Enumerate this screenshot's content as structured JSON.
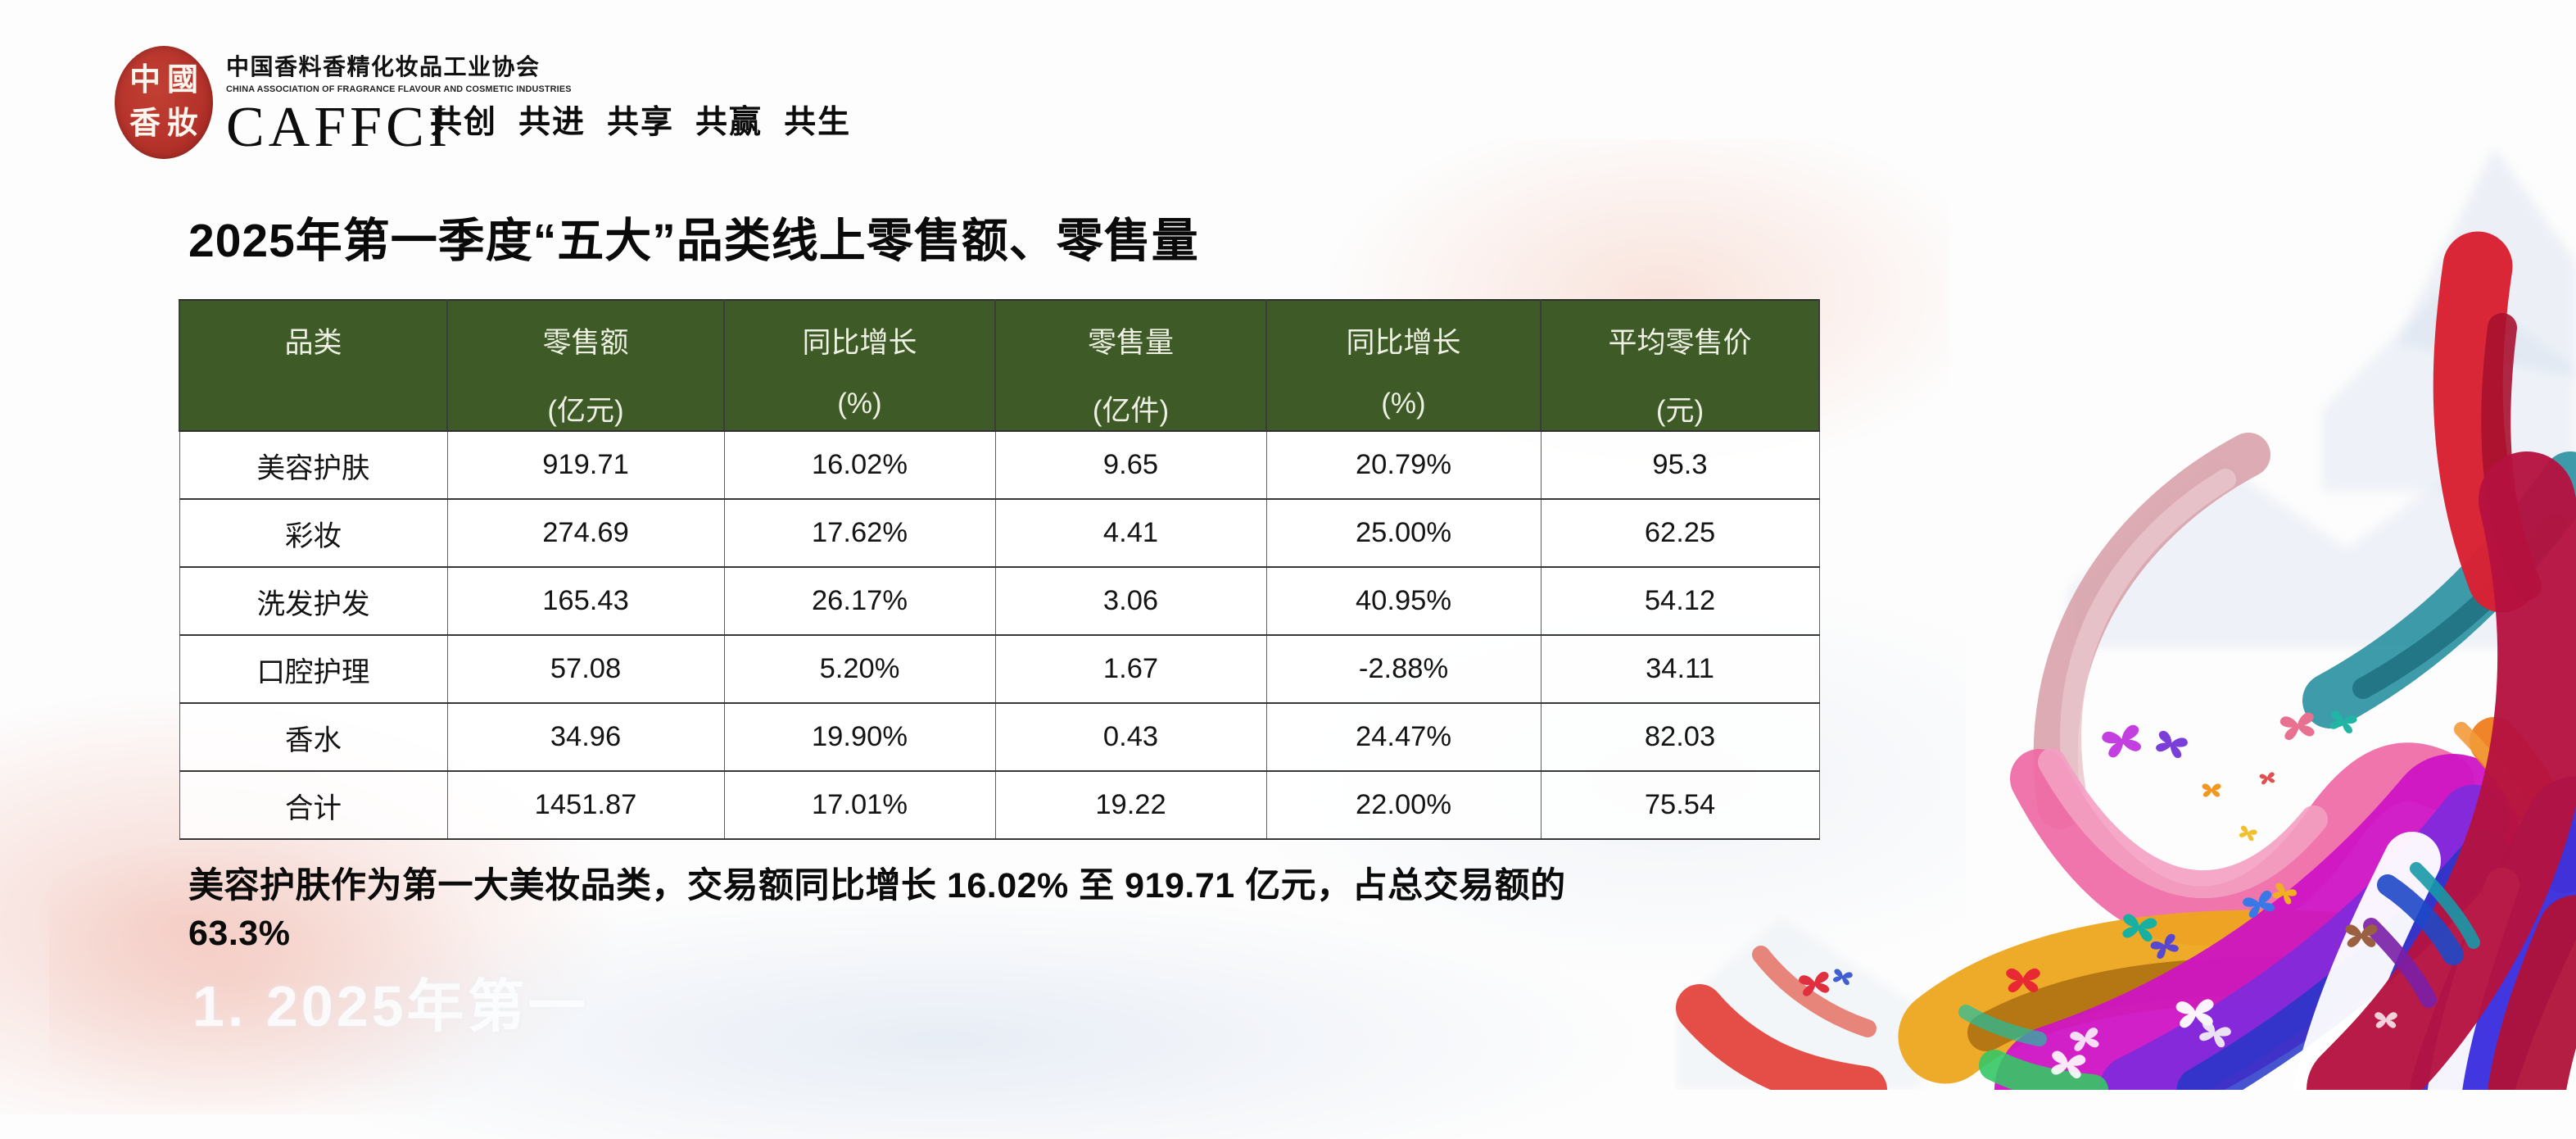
{
  "logo": {
    "seal_chars": [
      "中",
      "國",
      "香",
      "妝"
    ],
    "org_cn": "中国香料香精化妆品工业协会",
    "org_en": "CHINA ASSOCIATION OF FRAGRANCE FLAVOUR AND COSMETIC INDUSTRIES",
    "acronym": "CAFFCI"
  },
  "slogan": [
    "共创",
    "共进",
    "共享",
    "共赢",
    "共生"
  ],
  "title": "2025年第一季度“五大”品类线上零售额、零售量",
  "table": {
    "headers": [
      {
        "line1": "品类",
        "line2": ""
      },
      {
        "line1": "零售额",
        "line2": "(亿元)"
      },
      {
        "line1": "同比增长",
        "line2": "(%)"
      },
      {
        "line1": "零售量",
        "line2": "(亿件)"
      },
      {
        "line1": "同比增长",
        "line2": "(%)"
      },
      {
        "line1": "平均零售价",
        "line2": "(元)"
      }
    ],
    "rows": [
      [
        "美容护肤",
        "919.71",
        "16.02%",
        "9.65",
        "20.79%",
        "95.3"
      ],
      [
        "彩妆",
        "274.69",
        "17.62%",
        "4.41",
        "25.00%",
        "62.25"
      ],
      [
        "洗发护发",
        "165.43",
        "26.17%",
        "3.06",
        "40.95%",
        "54.12"
      ],
      [
        "口腔护理",
        "57.08",
        "5.20%",
        "1.67",
        "-2.88%",
        "34.11"
      ],
      [
        "香水",
        "34.96",
        "19.90%",
        "0.43",
        "24.47%",
        "82.03"
      ],
      [
        "合计",
        "1451.87",
        "17.01%",
        "19.22",
        "22.00%",
        "75.54"
      ]
    ]
  },
  "note_lines": [
    "美容护肤作为第一大美妆品类，交易额同比增长 16.02% 至 919.71 亿元，占总交易额的",
    "63.3%"
  ],
  "watermark": "1. 2025年第一",
  "colors": {
    "header_green": "#3e5a27",
    "seal_red": "#b5332b",
    "accent_crimson": "#b5123f",
    "accent_magenta": "#cf14c4"
  },
  "chart_data": {
    "type": "table",
    "title": "2025年第一季度“五大”品类线上零售额、零售量",
    "columns": [
      "品类",
      "零售额(亿元)",
      "同比增长(%)",
      "零售量(亿件)",
      "同比增长(%)",
      "平均零售价(元)"
    ],
    "rows": [
      {
        "品类": "美容护肤",
        "零售额亿元": 919.71,
        "零售额同比增长": "16.02%",
        "零售量亿件": 9.65,
        "零售量同比增长": "20.79%",
        "平均零售价元": 95.3
      },
      {
        "品类": "彩妆",
        "零售额亿元": 274.69,
        "零售额同比增长": "17.62%",
        "零售量亿件": 4.41,
        "零售量同比增长": "25.00%",
        "平均零售价元": 62.25
      },
      {
        "品类": "洗发护发",
        "零售额亿元": 165.43,
        "零售额同比增长": "26.17%",
        "零售量亿件": 3.06,
        "零售量同比增长": "40.95%",
        "平均零售价元": 54.12
      },
      {
        "品类": "口腔护理",
        "零售额亿元": 57.08,
        "零售额同比增长": "5.20%",
        "零售量亿件": 1.67,
        "零售量同比增长": "-2.88%",
        "平均零售价元": 34.11
      },
      {
        "品类": "香水",
        "零售额亿元": 34.96,
        "零售额同比增长": "19.90%",
        "零售量亿件": 0.43,
        "零售量同比增长": "24.47%",
        "平均零售价元": 82.03
      },
      {
        "品类": "合计",
        "零售额亿元": 1451.87,
        "零售额同比增长": "17.01%",
        "零售量亿件": 19.22,
        "零售量同比增长": "22.00%",
        "平均零售价元": 75.54
      }
    ]
  }
}
